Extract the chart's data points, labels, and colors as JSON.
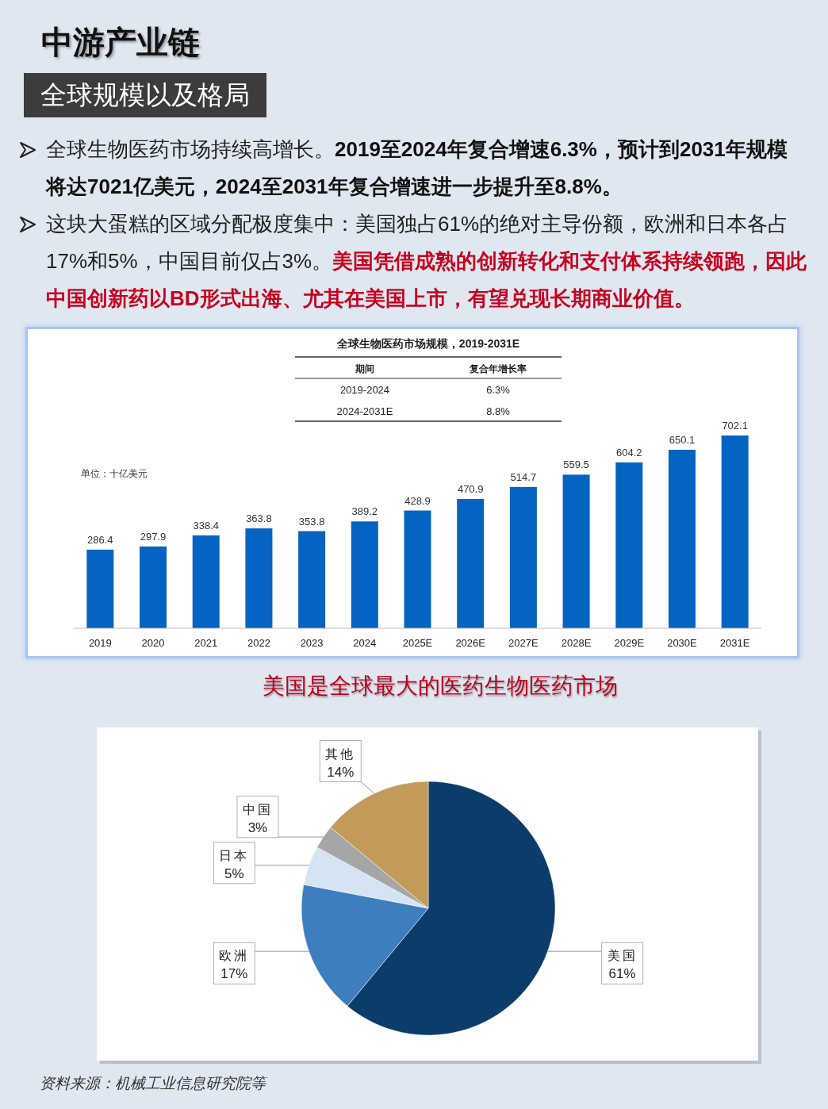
{
  "chart_data": [
    {
      "type": "other",
      "title": "中游产业链",
      "subtitle": "全球规模以及格局",
      "annotations": [
        "全球生物医药市场持续高增长。",
        "2019至2024年复合增速6.3%，预计到2031年规模",
        "将达7021亿美元，2024至2031年复合增速进一步提升至8.8%。",
        "这块大蛋糕的区域分配极度集中：美国独占61%的绝对主导份额，欧洲和日本各占",
        "17%和5%，中国目前仅占3%。",
        "美国凭借成熟的创新转化和支付体系持续领跑，因此",
        "中国创新药以BD形式出海、尤其在美国上市，有望兑现长期商业价值。"
      ]
    },
    {
      "type": "bar",
      "title": "全球生物医药市场规模，2019-2031E",
      "categories": [
        "2019",
        "2020",
        "2021",
        "2022",
        "2023",
        "2024",
        "2025E",
        "2026E",
        "2027E",
        "2028E",
        "2029E",
        "2030E",
        "2031E"
      ],
      "values": [
        286.4,
        297.9,
        338.4,
        363.8,
        353.8,
        389.2,
        428.9,
        470.9,
        514.7,
        559.5,
        604.2,
        650.1,
        702.1
      ],
      "color": "#0563c1",
      "data_labels": true,
      "annotations": [
        "单位：十亿美元",
        "期间",
        "复合年增长率",
        "2019-2024",
        "6.3%",
        "2024-2031E",
        "8.8%"
      ]
    },
    {
      "type": "pie",
      "title": "美国是全球最大的医药生物医药市场",
      "categories": [
        "美国",
        "欧洲",
        "日本",
        "中国",
        "其他"
      ],
      "values": [
        61,
        17,
        5,
        3,
        14
      ],
      "colors": [
        "#0b3c6a",
        "#3d7ebf",
        "#d5e4f3",
        "#a6a6a6",
        "#c29b58"
      ],
      "value_labels": [
        "61%",
        "17%",
        "5%",
        "3%",
        "14%"
      ],
      "annotations": [
        "资料来源：机械工业信息研究院等"
      ]
    }
  ]
}
